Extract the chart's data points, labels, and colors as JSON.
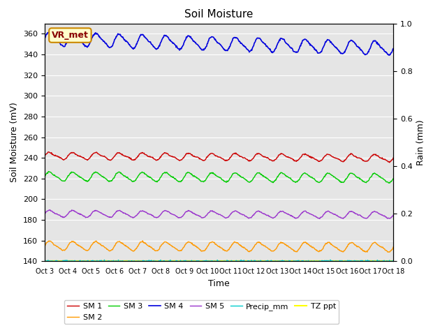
{
  "title": "Soil Moisture",
  "xlabel": "Time",
  "ylabel_left": "Soil Moisture (mV)",
  "ylabel_right": "Rain (mm)",
  "ylim_left": [
    140,
    370
  ],
  "ylim_right": [
    0.0,
    1.0
  ],
  "yticks_left": [
    140,
    160,
    180,
    200,
    220,
    240,
    260,
    280,
    300,
    320,
    340,
    360
  ],
  "yticks_right": [
    0.0,
    0.2,
    0.4,
    0.6,
    0.8,
    1.0
  ],
  "xtick_labels": [
    "Oct 3",
    "Oct 4",
    "Oct 5",
    "Oct 6",
    "Oct 7",
    "Oct 8",
    "Oct 9",
    "Oct 10",
    "Oct 11",
    "Oct 12",
    "Oct 13",
    "Oct 14",
    "Oct 15",
    "Oct 16",
    "Oct 17",
    "Oct 18"
  ],
  "n_days": 15,
  "background_color": "#e5e5e5",
  "grid_color": "#ffffff",
  "fig_bg": "#ffffff",
  "sm1_color": "#cc0000",
  "sm2_color": "#ff9900",
  "sm3_color": "#00cc00",
  "sm4_color": "#0000dd",
  "sm5_color": "#9933cc",
  "precip_color": "#00cccc",
  "tzppt_color": "#ffff00",
  "annotation_text": "VR_met",
  "annotation_bg": "#ffffcc",
  "annotation_border": "#cc8800",
  "legend_labels": [
    "SM 1",
    "SM 2",
    "SM 3",
    "SM 4",
    "SM 5",
    "Precip_mm",
    "TZ ppt"
  ],
  "title_fontsize": 11,
  "axis_label_fontsize": 9,
  "tick_fontsize": 8,
  "xtick_fontsize": 7
}
